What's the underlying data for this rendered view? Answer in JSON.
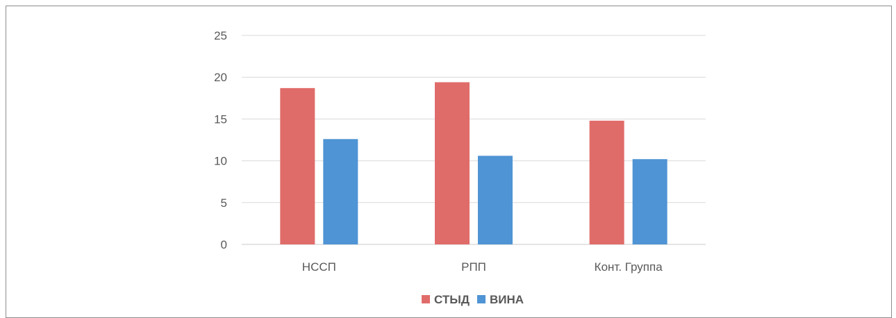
{
  "chart_data": {
    "type": "bar",
    "title": "",
    "xlabel": "",
    "ylabel": "",
    "categories": [
      "НССП",
      "РПП",
      "Конт. Группа"
    ],
    "series": [
      {
        "name": "СТЫД",
        "values": [
          18.7,
          19.4,
          14.8
        ],
        "color": "#e06c6a"
      },
      {
        "name": "ВИНА",
        "values": [
          12.6,
          10.6,
          10.2
        ],
        "color": "#4f94d4"
      }
    ],
    "ylim": [
      0,
      25
    ],
    "yticks": [
      "0",
      "5",
      "10",
      "15",
      "20",
      "25"
    ],
    "grid": true,
    "legend_position": "bottom"
  }
}
